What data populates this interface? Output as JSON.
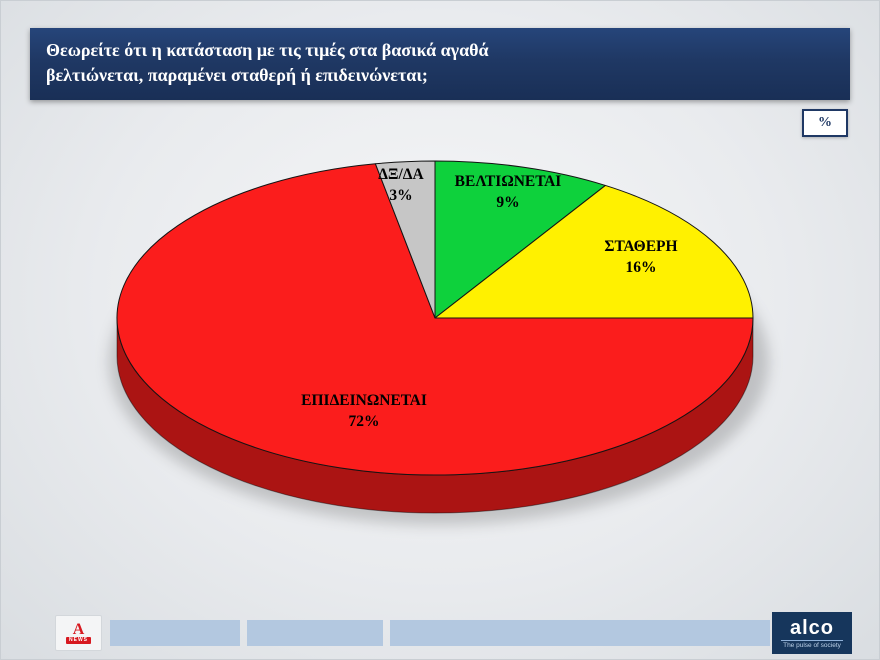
{
  "title": {
    "lines": [
      "Θεωρείτε ότι η κατάσταση με τις τιμές στα βασικά αγαθά",
      "βελτιώνεται, παραμένει σταθερή ή επιδεινώνεται;"
    ]
  },
  "percent_badge": "%",
  "chart_data": {
    "type": "pie",
    "style": "3d",
    "start_angle_deg": -90,
    "direction": "clockwise",
    "labels": [
      "ΒΕΛΤΙΩΝΕΤΑΙ",
      "ΣΤΑΘΕΡΗ",
      "ΕΠΙΔΕΙΝΩΝΕΤΑΙ",
      "ΔΞ/ΔΑ"
    ],
    "values": [
      9,
      16,
      72,
      3
    ],
    "value_suffix": "%",
    "colors": [
      "#0ed13c",
      "#fff100",
      "#fb1d1c",
      "#c6c6c6"
    ],
    "outline_color": "#141414"
  },
  "ui_colors": {
    "title_bar": "#1f3864",
    "footer_bar": "#b3c8e0",
    "alco_navy": "#16365c",
    "alpha_red": "#d71920"
  },
  "footer": {
    "alpha_logo": {
      "letter": "A",
      "news": "NEWS"
    },
    "alco_logo": {
      "name": "alco",
      "tagline": "The pulse of society"
    }
  }
}
